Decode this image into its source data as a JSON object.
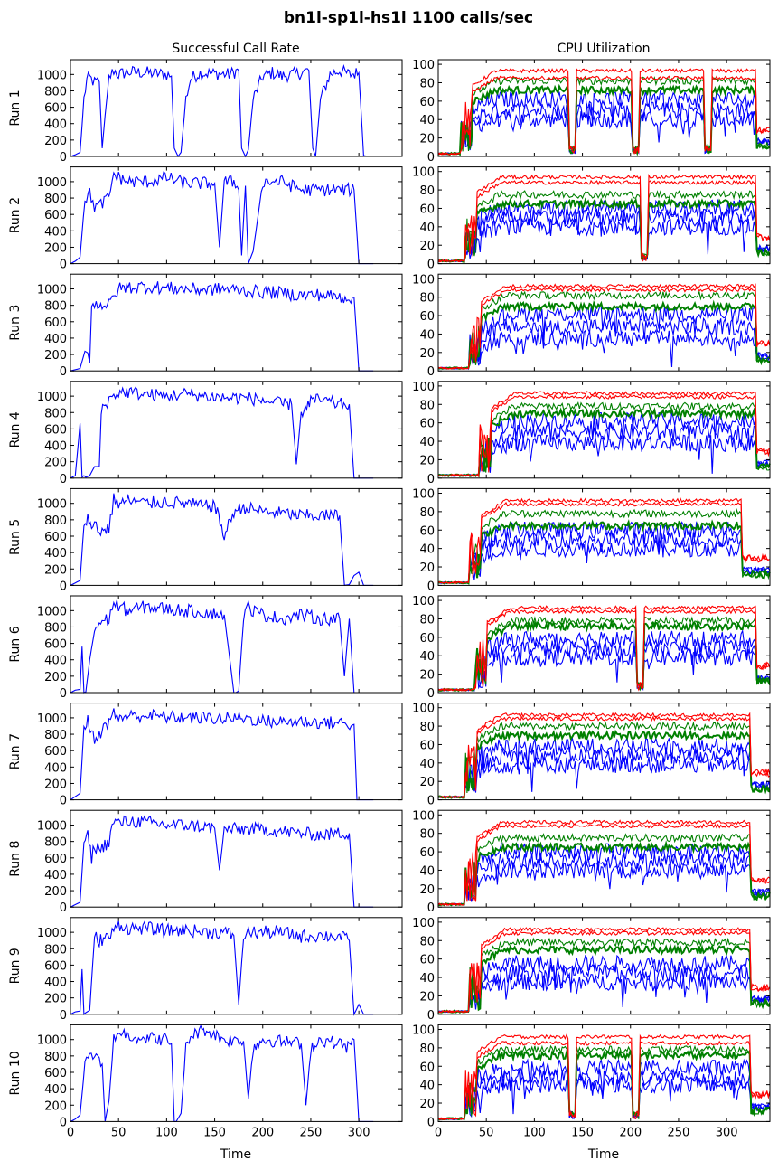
{
  "figure": {
    "title": "bn1l-sp1l-hs1l 1100 calls/sec",
    "col_titles": [
      "Successful Call Rate",
      "CPU Utilization"
    ],
    "xlabel": "Time",
    "row_labels": [
      "Run 1",
      "Run 2",
      "Run 3",
      "Run 4",
      "Run 5",
      "Run 6",
      "Run 7",
      "Run 8",
      "Run 9",
      "Run 10"
    ]
  },
  "colors": {
    "blue": "#0000ff",
    "green": "#008000",
    "red": "#ff0000",
    "axis": "#000000"
  },
  "chart_data": [
    {
      "type": "line",
      "column": "Successful Call Rate",
      "xlabel": "Time",
      "xlim": [
        0,
        345
      ],
      "ylim": [
        0,
        1180
      ],
      "xticks": [
        0,
        50,
        100,
        150,
        200,
        250,
        300
      ],
      "yticks": [
        0,
        200,
        400,
        600,
        800,
        1000
      ],
      "runs": [
        {
          "label": "Run 1",
          "color": "#0000ff",
          "x": [
            0,
            5,
            10,
            14,
            17,
            20,
            25,
            30,
            33,
            36,
            40,
            45,
            50,
            60,
            80,
            100,
            105,
            108,
            112,
            115,
            120,
            125,
            135,
            150,
            165,
            175,
            178,
            182,
            185,
            190,
            200,
            210,
            220,
            230,
            240,
            248,
            252,
            255,
            260,
            270,
            280,
            290,
            300,
            305,
            310
          ],
          "y": [
            0,
            20,
            50,
            700,
            930,
            960,
            900,
            910,
            100,
            500,
            950,
            1050,
            1000,
            1030,
            1020,
            1000,
            980,
            100,
            0,
            50,
            700,
            950,
            1020,
            1010,
            1000,
            1050,
            100,
            0,
            80,
            700,
            980,
            1020,
            980,
            1000,
            1020,
            1050,
            100,
            0,
            700,
            1000,
            1050,
            1000,
            1020,
            10,
            0
          ]
        },
        {
          "label": "Run 2",
          "color": "#0000ff",
          "x": [
            0,
            5,
            10,
            15,
            20,
            25,
            30,
            35,
            40,
            45,
            50,
            60,
            80,
            100,
            120,
            150,
            155,
            160,
            170,
            175,
            178,
            182,
            185,
            190,
            200,
            220,
            240,
            260,
            280,
            295,
            300,
            305,
            310
          ],
          "y": [
            0,
            30,
            80,
            800,
            850,
            700,
            700,
            760,
            800,
            1100,
            1050,
            1000,
            1000,
            1050,
            980,
            980,
            200,
            1000,
            1000,
            900,
            100,
            950,
            0,
            150,
            1000,
            1000,
            900,
            900,
            900,
            900,
            0,
            0,
            0
          ]
        },
        {
          "label": "Run 3",
          "color": "#0000ff",
          "x": [
            0,
            10,
            15,
            18,
            20,
            22,
            25,
            30,
            40,
            45,
            50,
            60,
            80,
            100,
            120,
            140,
            160,
            180,
            200,
            220,
            240,
            260,
            280,
            290,
            295,
            300,
            305,
            310
          ],
          "y": [
            0,
            30,
            240,
            220,
            100,
            780,
            800,
            820,
            800,
            900,
            1000,
            1020,
            1030,
            1010,
            1000,
            990,
            1000,
            980,
            960,
            950,
            920,
            930,
            900,
            900,
            900,
            0,
            0,
            0
          ]
        },
        {
          "label": "Run 4",
          "color": "#0000ff",
          "x": [
            0,
            5,
            10,
            12,
            14,
            16,
            20,
            25,
            30,
            32,
            35,
            40,
            45,
            50,
            60,
            80,
            100,
            120,
            140,
            160,
            180,
            200,
            220,
            230,
            235,
            240,
            250,
            260,
            280,
            290,
            295,
            300
          ],
          "y": [
            0,
            30,
            670,
            10,
            30,
            10,
            30,
            140,
            140,
            800,
            900,
            950,
            1000,
            1050,
            1050,
            1020,
            1000,
            1030,
            1000,
            980,
            980,
            950,
            900,
            900,
            170,
            800,
            950,
            950,
            900,
            900,
            0,
            0
          ]
        },
        {
          "label": "Run 5",
          "color": "#0000ff",
          "x": [
            0,
            5,
            10,
            14,
            18,
            22,
            25,
            30,
            40,
            45,
            50,
            60,
            80,
            100,
            120,
            140,
            150,
            160,
            170,
            180,
            200,
            220,
            240,
            260,
            280,
            285,
            290,
            295,
            300,
            305,
            310
          ],
          "y": [
            0,
            30,
            60,
            750,
            850,
            650,
            800,
            650,
            700,
            1050,
            1000,
            1030,
            1000,
            1020,
            1000,
            960,
            980,
            600,
            900,
            950,
            900,
            880,
            850,
            850,
            850,
            0,
            10,
            120,
            160,
            0,
            0
          ]
        },
        {
          "label": "Run 6",
          "color": "#0000ff",
          "x": [
            0,
            5,
            10,
            12,
            14,
            16,
            20,
            25,
            30,
            40,
            45,
            50,
            60,
            80,
            100,
            120,
            140,
            160,
            170,
            172,
            175,
            180,
            185,
            190,
            200,
            220,
            240,
            260,
            280,
            285,
            290,
            295,
            300
          ],
          "y": [
            0,
            30,
            40,
            560,
            0,
            10,
            400,
            750,
            850,
            900,
            1100,
            1050,
            1000,
            1050,
            1020,
            1000,
            980,
            950,
            0,
            0,
            20,
            900,
            1050,
            1000,
            950,
            900,
            950,
            900,
            900,
            200,
            900,
            0,
            0
          ]
        },
        {
          "label": "Run 7",
          "color": "#0000ff",
          "x": [
            0,
            5,
            10,
            14,
            18,
            22,
            25,
            30,
            40,
            45,
            50,
            60,
            80,
            100,
            120,
            140,
            160,
            180,
            200,
            220,
            240,
            260,
            280,
            295,
            298,
            300,
            305,
            310
          ],
          "y": [
            0,
            40,
            80,
            900,
            960,
            800,
            760,
            800,
            950,
            1050,
            1000,
            1020,
            1030,
            1010,
            1000,
            1000,
            990,
            1000,
            960,
            950,
            960,
            940,
            940,
            920,
            0,
            0,
            0,
            0
          ]
        },
        {
          "label": "Run 8",
          "color": "#0000ff",
          "x": [
            0,
            5,
            10,
            14,
            18,
            22,
            25,
            30,
            40,
            45,
            50,
            60,
            80,
            100,
            120,
            140,
            150,
            155,
            160,
            180,
            200,
            220,
            240,
            260,
            280,
            290,
            295,
            300,
            305,
            310
          ],
          "y": [
            0,
            30,
            60,
            800,
            860,
            600,
            750,
            700,
            800,
            1050,
            1020,
            1050,
            1030,
            1000,
            1000,
            980,
            960,
            450,
            950,
            950,
            950,
            920,
            900,
            880,
            900,
            900,
            0,
            0,
            0,
            0
          ]
        },
        {
          "label": "Run 9",
          "color": "#0000ff",
          "x": [
            0,
            5,
            10,
            12,
            14,
            16,
            20,
            25,
            30,
            40,
            45,
            50,
            60,
            80,
            100,
            120,
            140,
            160,
            170,
            175,
            180,
            185,
            200,
            220,
            240,
            260,
            280,
            290,
            295,
            300,
            305,
            310
          ],
          "y": [
            0,
            30,
            40,
            550,
            0,
            20,
            50,
            950,
            900,
            950,
            1000,
            1100,
            1050,
            1050,
            1020,
            1030,
            1000,
            1000,
            960,
            120,
            950,
            1000,
            1000,
            1000,
            950,
            960,
            950,
            900,
            0,
            120,
            0,
            0
          ]
        },
        {
          "label": "Run 10",
          "color": "#0000ff",
          "x": [
            0,
            5,
            10,
            15,
            20,
            25,
            30,
            33,
            36,
            40,
            45,
            50,
            60,
            80,
            100,
            105,
            108,
            110,
            115,
            120,
            125,
            140,
            160,
            180,
            185,
            190,
            200,
            240,
            245,
            250,
            260,
            280,
            290,
            295,
            300,
            305,
            310
          ],
          "y": [
            0,
            30,
            80,
            700,
            780,
            760,
            790,
            700,
            0,
            250,
            1000,
            1100,
            1050,
            1020,
            1000,
            950,
            0,
            0,
            100,
            900,
            1050,
            1120,
            1000,
            980,
            280,
            900,
            1000,
            950,
            200,
            900,
            1000,
            950,
            900,
            1000,
            0,
            0,
            0
          ]
        }
      ]
    },
    {
      "type": "line",
      "column": "CPU Utilization",
      "xlabel": "Time",
      "xlim": [
        0,
        345
      ],
      "ylim": [
        0,
        105
      ],
      "xticks": [
        0,
        50,
        100,
        150,
        200,
        250,
        300
      ],
      "yticks": [
        0,
        20,
        40,
        60,
        80,
        100
      ],
      "runs": [
        {
          "label": "Run 1",
          "breaks": [
            35,
            140,
            205,
            280,
            330
          ],
          "dip_at": [
            140,
            205,
            280
          ],
          "levels": {
            "red": [
              85,
              93
            ],
            "green": [
              72,
              82
            ],
            "blue": [
              40,
              50,
              62
            ]
          }
        },
        {
          "label": "Run 2",
          "breaks": [
            40,
            215,
            330
          ],
          "dip_at": [
            215
          ],
          "levels": {
            "red": [
              88,
              94
            ],
            "green": [
              65,
              75
            ],
            "blue": [
              40,
              50,
              60
            ]
          }
        },
        {
          "label": "Run 3",
          "breaks": [
            45,
            330
          ],
          "dip_at": [],
          "levels": {
            "red": [
              88,
              92
            ],
            "green": [
              70,
              82
            ],
            "blue": [
              35,
              48,
              62
            ]
          }
        },
        {
          "label": "Run 4",
          "breaks": [
            55,
            330
          ],
          "dip_at": [],
          "levels": {
            "red": [
              88,
              92
            ],
            "green": [
              70,
              78
            ],
            "blue": [
              38,
              50,
              62
            ]
          }
        },
        {
          "label": "Run 5",
          "breaks": [
            45,
            315
          ],
          "dip_at": [],
          "levels": {
            "red": [
              88,
              92
            ],
            "green": [
              65,
              78
            ],
            "blue": [
              40,
              50,
              60
            ]
          }
        },
        {
          "label": "Run 6",
          "breaks": [
            50,
            210,
            330
          ],
          "dip_at": [
            210
          ],
          "levels": {
            "red": [
              88,
              92
            ],
            "green": [
              72,
              78
            ],
            "blue": [
              38,
              48,
              58
            ]
          }
        },
        {
          "label": "Run 7",
          "breaks": [
            40,
            325
          ],
          "dip_at": [],
          "levels": {
            "red": [
              88,
              92
            ],
            "green": [
              70,
              80
            ],
            "blue": [
              38,
              48,
              58
            ]
          }
        },
        {
          "label": "Run 8",
          "breaks": [
            40,
            325
          ],
          "dip_at": [],
          "levels": {
            "red": [
              88,
              92
            ],
            "green": [
              65,
              75
            ],
            "blue": [
              40,
              50,
              60
            ]
          }
        },
        {
          "label": "Run 9",
          "breaks": [
            45,
            325
          ],
          "dip_at": [],
          "levels": {
            "red": [
              88,
              92
            ],
            "green": [
              70,
              78
            ],
            "blue": [
              35,
              45,
              55
            ]
          }
        },
        {
          "label": "Run 10",
          "breaks": [
            40,
            140,
            205,
            325
          ],
          "dip_at": [
            140,
            205
          ],
          "levels": {
            "red": [
              85,
              92
            ],
            "green": [
              72,
              78
            ],
            "blue": [
              40,
              48,
              58
            ]
          }
        }
      ]
    }
  ]
}
